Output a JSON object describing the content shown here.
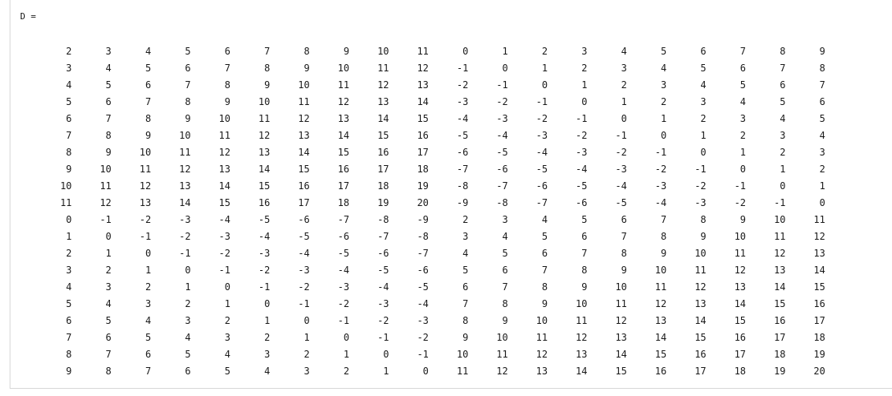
{
  "output": {
    "label": "D ="
  },
  "matrix": {
    "rows": [
      [
        "2",
        "3",
        "4",
        "5",
        "6",
        "7",
        "8",
        "9",
        "10",
        "11",
        "0",
        "1",
        "2",
        "3",
        "4",
        "5",
        "6",
        "7",
        "8",
        "9"
      ],
      [
        "3",
        "4",
        "5",
        "6",
        "7",
        "8",
        "9",
        "10",
        "11",
        "12",
        "-1",
        "0",
        "1",
        "2",
        "3",
        "4",
        "5",
        "6",
        "7",
        "8"
      ],
      [
        "4",
        "5",
        "6",
        "7",
        "8",
        "9",
        "10",
        "11",
        "12",
        "13",
        "-2",
        "-1",
        "0",
        "1",
        "2",
        "3",
        "4",
        "5",
        "6",
        "7"
      ],
      [
        "5",
        "6",
        "7",
        "8",
        "9",
        "10",
        "11",
        "12",
        "13",
        "14",
        "-3",
        "-2",
        "-1",
        "0",
        "1",
        "2",
        "3",
        "4",
        "5",
        "6"
      ],
      [
        "6",
        "7",
        "8",
        "9",
        "10",
        "11",
        "12",
        "13",
        "14",
        "15",
        "-4",
        "-3",
        "-2",
        "-1",
        "0",
        "1",
        "2",
        "3",
        "4",
        "5"
      ],
      [
        "7",
        "8",
        "9",
        "10",
        "11",
        "12",
        "13",
        "14",
        "15",
        "16",
        "-5",
        "-4",
        "-3",
        "-2",
        "-1",
        "0",
        "1",
        "2",
        "3",
        "4"
      ],
      [
        "8",
        "9",
        "10",
        "11",
        "12",
        "13",
        "14",
        "15",
        "16",
        "17",
        "-6",
        "-5",
        "-4",
        "-3",
        "-2",
        "-1",
        "0",
        "1",
        "2",
        "3"
      ],
      [
        "9",
        "10",
        "11",
        "12",
        "13",
        "14",
        "15",
        "16",
        "17",
        "18",
        "-7",
        "-6",
        "-5",
        "-4",
        "-3",
        "-2",
        "-1",
        "0",
        "1",
        "2"
      ],
      [
        "10",
        "11",
        "12",
        "13",
        "14",
        "15",
        "16",
        "17",
        "18",
        "19",
        "-8",
        "-7",
        "-6",
        "-5",
        "-4",
        "-3",
        "-2",
        "-1",
        "0",
        "1"
      ],
      [
        "11",
        "12",
        "13",
        "14",
        "15",
        "16",
        "17",
        "18",
        "19",
        "20",
        "-9",
        "-8",
        "-7",
        "-6",
        "-5",
        "-4",
        "-3",
        "-2",
        "-1",
        "0"
      ],
      [
        "0",
        "-1",
        "-2",
        "-3",
        "-4",
        "-5",
        "-6",
        "-7",
        "-8",
        "-9",
        "2",
        "3",
        "4",
        "5",
        "6",
        "7",
        "8",
        "9",
        "10",
        "11"
      ],
      [
        "1",
        "0",
        "-1",
        "-2",
        "-3",
        "-4",
        "-5",
        "-6",
        "-7",
        "-8",
        "3",
        "4",
        "5",
        "6",
        "7",
        "8",
        "9",
        "10",
        "11",
        "12"
      ],
      [
        "2",
        "1",
        "0",
        "-1",
        "-2",
        "-3",
        "-4",
        "-5",
        "-6",
        "-7",
        "4",
        "5",
        "6",
        "7",
        "8",
        "9",
        "10",
        "11",
        "12",
        "13"
      ],
      [
        "3",
        "2",
        "1",
        "0",
        "-1",
        "-2",
        "-3",
        "-4",
        "-5",
        "-6",
        "5",
        "6",
        "7",
        "8",
        "9",
        "10",
        "11",
        "12",
        "13",
        "14"
      ],
      [
        "4",
        "3",
        "2",
        "1",
        "0",
        "-1",
        "-2",
        "-3",
        "-4",
        "-5",
        "6",
        "7",
        "8",
        "9",
        "10",
        "11",
        "12",
        "13",
        "14",
        "15"
      ],
      [
        "5",
        "4",
        "3",
        "2",
        "1",
        "0",
        "-1",
        "-2",
        "-3",
        "-4",
        "7",
        "8",
        "9",
        "10",
        "11",
        "12",
        "13",
        "14",
        "15",
        "16"
      ],
      [
        "6",
        "5",
        "4",
        "3",
        "2",
        "1",
        "0",
        "-1",
        "-2",
        "-3",
        "8",
        "9",
        "10",
        "11",
        "12",
        "13",
        "14",
        "15",
        "16",
        "17"
      ],
      [
        "7",
        "6",
        "5",
        "4",
        "3",
        "2",
        "1",
        "0",
        "-1",
        "-2",
        "9",
        "10",
        "11",
        "12",
        "13",
        "14",
        "15",
        "16",
        "17",
        "18"
      ],
      [
        "8",
        "7",
        "6",
        "5",
        "4",
        "3",
        "2",
        "1",
        "0",
        "-1",
        "10",
        "11",
        "12",
        "13",
        "14",
        "15",
        "16",
        "17",
        "18",
        "19"
      ],
      [
        "9",
        "8",
        "7",
        "6",
        "5",
        "4",
        "3",
        "2",
        "1",
        "0",
        "11",
        "12",
        "13",
        "14",
        "15",
        "16",
        "17",
        "18",
        "19",
        "20"
      ]
    ]
  }
}
